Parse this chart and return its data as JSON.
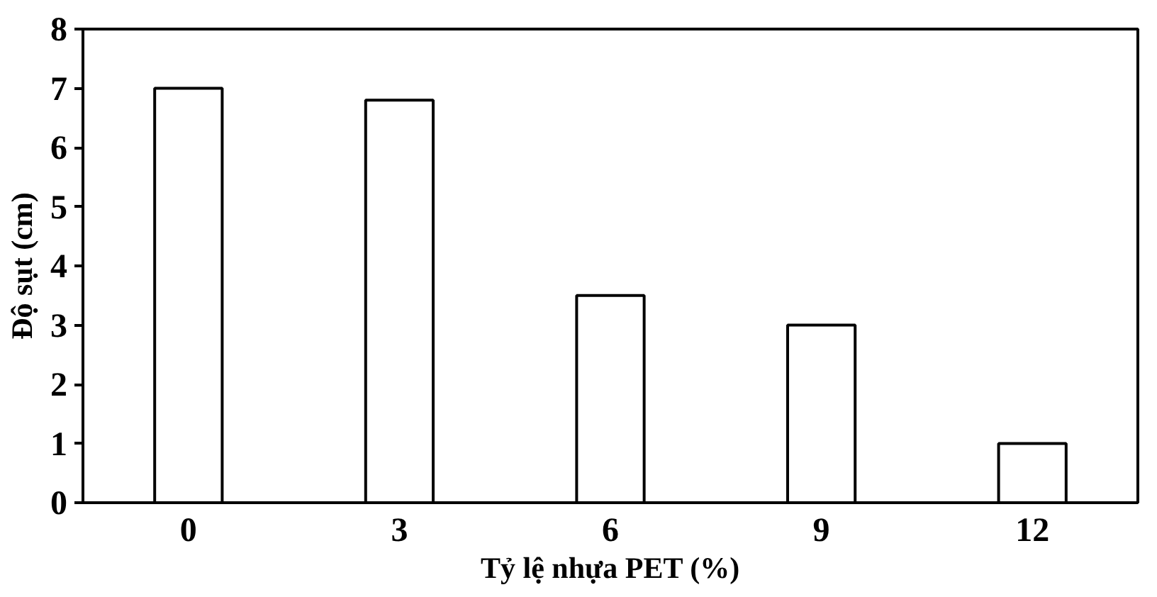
{
  "chart_data": {
    "type": "bar",
    "xlabel": "Tỷ lệ nhựa PET (%)",
    "ylabel": "Độ sụt (cm)",
    "categories": [
      "0",
      "3",
      "6",
      "9",
      "12"
    ],
    "series": [
      {
        "color": "#ffffff",
        "values": [
          7,
          6.8,
          3.5,
          3,
          1
        ]
      }
    ],
    "ylim": [
      0,
      8
    ],
    "yticks": [
      0,
      1,
      2,
      3,
      4,
      5,
      6,
      7,
      8
    ],
    "grid": false
  }
}
